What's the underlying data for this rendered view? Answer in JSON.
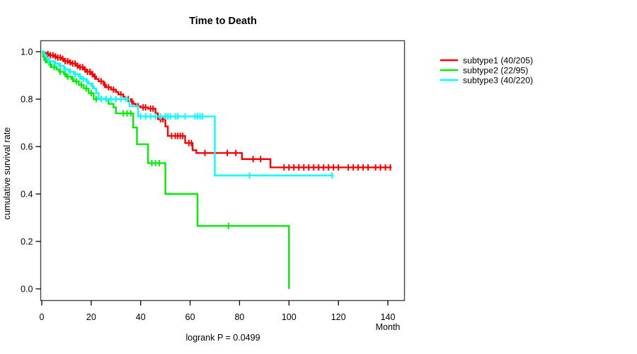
{
  "chart_data": {
    "type": "line",
    "variant": "kaplan-meier-step",
    "title": "Time to Death",
    "xlabel": "Month",
    "ylabel": "cumulative survival rate",
    "annotation": "logrank P = 0.0499",
    "x_ticks": [
      0,
      20,
      40,
      60,
      80,
      100,
      120,
      140
    ],
    "y_ticks": [
      0.0,
      0.2,
      0.4,
      0.6,
      0.8,
      1.0
    ],
    "xlim": [
      0,
      147
    ],
    "ylim": [
      0,
      1
    ],
    "grid": false,
    "legend_position": "right",
    "colors": {
      "axis": "#444444",
      "text": "#000000",
      "background": "#ffffff"
    },
    "series": [
      {
        "name": "subtype1",
        "label": "subtype1 (40/205)",
        "color": "#ff0000",
        "events": 40,
        "n": 205,
        "end_time": 141.5,
        "points": [
          [
            0,
            1.0
          ],
          [
            1,
            0.995
          ],
          [
            2,
            0.99
          ],
          [
            3,
            0.985
          ],
          [
            5,
            0.98
          ],
          [
            6,
            0.975
          ],
          [
            8,
            0.97
          ],
          [
            9,
            0.96
          ],
          [
            11,
            0.955
          ],
          [
            12,
            0.95
          ],
          [
            14,
            0.94
          ],
          [
            15,
            0.935
          ],
          [
            17,
            0.925
          ],
          [
            18,
            0.915
          ],
          [
            20,
            0.905
          ],
          [
            21,
            0.895
          ],
          [
            22,
            0.885
          ],
          [
            23,
            0.875
          ],
          [
            25,
            0.86
          ],
          [
            26,
            0.85
          ],
          [
            28,
            0.84
          ],
          [
            30,
            0.83
          ],
          [
            31,
            0.82
          ],
          [
            33,
            0.81
          ],
          [
            34,
            0.8
          ],
          [
            36,
            0.79
          ],
          [
            37,
            0.78
          ],
          [
            38,
            0.77
          ],
          [
            40,
            0.765
          ],
          [
            43,
            0.76
          ],
          [
            46,
            0.74
          ],
          [
            47,
            0.715
          ],
          [
            50,
            0.685
          ],
          [
            51,
            0.645
          ],
          [
            58,
            0.615
          ],
          [
            61,
            0.585
          ],
          [
            62.5,
            0.573
          ],
          [
            81,
            0.547
          ],
          [
            92.5,
            0.512
          ]
        ],
        "censors": [
          2.5,
          3.5,
          4.5,
          5.5,
          6.5,
          7.5,
          8.5,
          9.5,
          10.5,
          11.5,
          12.5,
          13.5,
          14.5,
          15.5,
          16.5,
          17.5,
          18.5,
          19.5,
          20.5,
          21.5,
          24,
          25.5,
          27,
          29,
          32,
          35,
          36.5,
          39,
          41,
          42,
          44,
          45,
          48,
          49,
          52.5,
          54,
          55,
          56,
          57,
          59.5,
          60.5,
          66,
          75,
          78.5,
          85.5,
          88.5,
          98,
          100,
          102,
          104,
          106,
          108,
          110,
          112,
          114,
          116,
          118,
          120,
          124,
          126,
          128,
          130,
          132,
          135,
          137,
          139,
          141
        ]
      },
      {
        "name": "subtype2",
        "label": "subtype2 (22/95)",
        "color": "#00ee00",
        "events": 22,
        "n": 95,
        "end_time": 100,
        "points": [
          [
            0,
            1.0
          ],
          [
            0.5,
            0.98
          ],
          [
            1,
            0.965
          ],
          [
            2,
            0.955
          ],
          [
            3,
            0.945
          ],
          [
            4,
            0.935
          ],
          [
            6,
            0.925
          ],
          [
            7,
            0.915
          ],
          [
            9,
            0.905
          ],
          [
            10,
            0.895
          ],
          [
            12,
            0.885
          ],
          [
            13,
            0.875
          ],
          [
            15,
            0.86
          ],
          [
            17,
            0.845
          ],
          [
            19,
            0.825
          ],
          [
            21,
            0.8
          ],
          [
            27,
            0.78
          ],
          [
            29,
            0.765
          ],
          [
            30,
            0.74
          ],
          [
            37,
            0.68
          ],
          [
            38.5,
            0.61
          ],
          [
            43,
            0.53
          ],
          [
            50,
            0.4
          ],
          [
            63,
            0.265
          ],
          [
            100,
            0.0
          ]
        ],
        "censors": [
          1.5,
          3.5,
          5,
          7.5,
          9.5,
          10.5,
          12.5,
          14,
          16,
          18,
          20,
          22,
          24,
          26,
          33,
          34.5,
          36,
          44.5,
          46,
          47.5,
          75.5
        ]
      },
      {
        "name": "subtype3",
        "label": "subtype3 (40/220)",
        "color": "#00ffff",
        "events": 40,
        "n": 220,
        "end_time": 118,
        "points": [
          [
            0,
            1.0
          ],
          [
            1,
            0.985
          ],
          [
            2,
            0.97
          ],
          [
            3,
            0.96
          ],
          [
            5,
            0.95
          ],
          [
            7,
            0.94
          ],
          [
            9,
            0.925
          ],
          [
            11,
            0.915
          ],
          [
            13,
            0.905
          ],
          [
            15,
            0.895
          ],
          [
            16,
            0.885
          ],
          [
            18,
            0.875
          ],
          [
            19,
            0.865
          ],
          [
            20,
            0.855
          ],
          [
            21,
            0.845
          ],
          [
            22,
            0.825
          ],
          [
            23,
            0.8
          ],
          [
            35.5,
            0.77
          ],
          [
            39,
            0.727
          ],
          [
            70,
            0.478
          ]
        ],
        "censors": [
          3,
          5.5,
          7.5,
          9.5,
          11.5,
          13.5,
          15.5,
          16.8,
          18.4,
          20.6,
          24,
          26,
          28,
          30,
          32,
          34,
          40,
          42,
          44,
          46,
          48,
          50,
          51,
          52,
          54,
          55,
          58,
          62,
          63,
          64,
          65,
          84,
          117.5
        ]
      }
    ]
  }
}
